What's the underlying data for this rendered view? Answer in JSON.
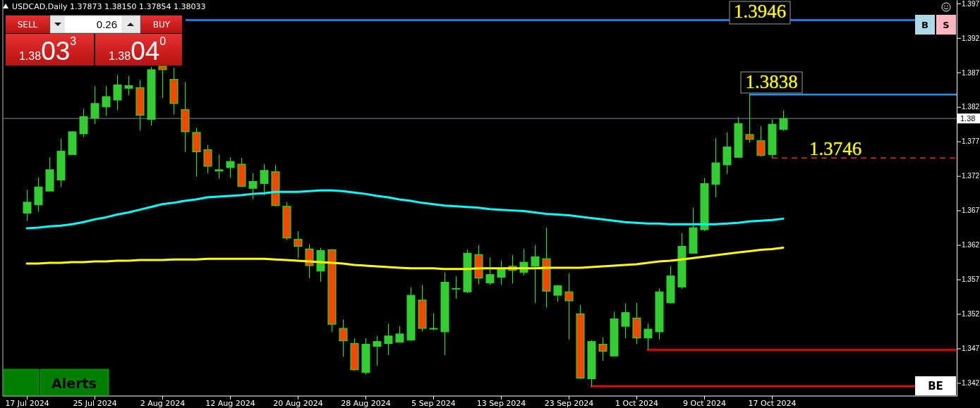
{
  "chart_data": {
    "type": "candlestick",
    "title": "USDCAD,Daily 1.37873 1.38150 1.37854 1.38033",
    "categories": [
      "17 Jul 2024",
      null,
      null,
      null,
      null,
      null,
      "25 Jul 2024",
      null,
      null,
      null,
      null,
      null,
      "2 Aug 2024",
      null,
      null,
      null,
      null,
      null,
      "12 Aug 2024",
      null,
      null,
      null,
      null,
      null,
      "20 Aug 2024",
      null,
      null,
      null,
      null,
      null,
      "28 Aug 2024",
      null,
      null,
      null,
      null,
      null,
      "5 Sep 2024",
      null,
      null,
      null,
      null,
      null,
      "13 Sep 2024",
      null,
      null,
      null,
      null,
      null,
      "23 Sep 2024",
      null,
      null,
      null,
      null,
      null,
      "1 Oct 2024",
      null,
      null,
      null,
      null,
      null,
      "9 Oct 2024",
      null,
      null,
      null,
      null,
      null,
      "17 Oct 2024",
      null,
      null,
      null,
      null,
      null,
      null,
      null,
      null,
      null,
      null,
      null,
      null,
      null,
      null,
      null,
      null
    ],
    "ohlc": [
      [
        1.3666,
        1.37,
        1.3655,
        1.3682
      ],
      [
        1.3678,
        1.3718,
        1.3668,
        1.3704
      ],
      [
        1.3698,
        1.3747,
        1.3697,
        1.3729
      ],
      [
        1.3714,
        1.3774,
        1.3704,
        1.3756
      ],
      [
        1.3751,
        1.3785,
        1.3751,
        1.3784
      ],
      [
        1.3781,
        1.3817,
        1.3776,
        1.3806
      ],
      [
        1.3804,
        1.385,
        1.3795,
        1.3825
      ],
      [
        1.382,
        1.385,
        1.3807,
        1.3835
      ],
      [
        1.383,
        1.3866,
        1.3815,
        1.3852
      ],
      [
        1.3847,
        1.3865,
        1.3837,
        1.3851
      ],
      [
        1.3848,
        1.3859,
        1.3786,
        1.3808
      ],
      [
        1.3802,
        1.3878,
        1.3793,
        1.3874
      ],
      [
        1.3879,
        1.3879,
        1.3833,
        1.3874
      ],
      [
        1.386,
        1.3877,
        1.3809,
        1.3825
      ],
      [
        1.3816,
        1.3856,
        1.3755,
        1.3784
      ],
      [
        1.3783,
        1.379,
        1.3719,
        1.3755
      ],
      [
        1.3758,
        1.3765,
        1.3724,
        1.3734
      ],
      [
        1.3727,
        1.3751,
        1.3716,
        1.3729
      ],
      [
        1.3732,
        1.3747,
        1.3717,
        1.3741
      ],
      [
        1.3737,
        1.3746,
        1.3704,
        1.3705
      ],
      [
        1.3702,
        1.3724,
        1.3686,
        1.3712
      ],
      [
        1.3709,
        1.3737,
        1.3692,
        1.3728
      ],
      [
        1.3726,
        1.3736,
        1.3676,
        1.3677
      ],
      [
        1.3676,
        1.3682,
        1.3627,
        1.363
      ],
      [
        1.3628,
        1.364,
        1.3601,
        1.3618
      ],
      [
        1.3614,
        1.3621,
        1.3572,
        1.359
      ],
      [
        1.3582,
        1.3616,
        1.3567,
        1.3612
      ],
      [
        1.3613,
        1.3614,
        1.3494,
        1.3505
      ],
      [
        1.3499,
        1.3512,
        1.3458,
        1.3481
      ],
      [
        1.3477,
        1.3485,
        1.3438,
        1.3439
      ],
      [
        1.3435,
        1.3485,
        1.3432,
        1.3476
      ],
      [
        1.3473,
        1.3488,
        1.3445,
        1.348
      ],
      [
        1.3477,
        1.3506,
        1.346,
        1.3488
      ],
      [
        1.3479,
        1.3502,
        1.3479,
        1.3491
      ],
      [
        1.3482,
        1.3559,
        1.3481,
        1.3547
      ],
      [
        1.354,
        1.3562,
        1.3495,
        1.3499
      ],
      [
        1.3498,
        1.3521,
        1.3496,
        1.3499
      ],
      [
        1.3494,
        1.358,
        1.346,
        1.3566
      ],
      [
        1.3556,
        1.3574,
        1.3542,
        1.3557
      ],
      [
        1.3552,
        1.3613,
        1.355,
        1.3608
      ],
      [
        1.3606,
        1.362,
        1.3563,
        1.3572
      ],
      [
        1.3565,
        1.3602,
        1.3562,
        1.3577
      ],
      [
        1.3573,
        1.3597,
        1.3562,
        1.3586
      ],
      [
        1.3589,
        1.3605,
        1.3564,
        1.3583
      ],
      [
        1.358,
        1.3614,
        1.3576,
        1.3595
      ],
      [
        1.3589,
        1.362,
        1.3536,
        1.3603
      ],
      [
        1.36,
        1.3645,
        1.3529,
        1.3553
      ],
      [
        1.3547,
        1.3562,
        1.3538,
        1.3561
      ],
      [
        1.3552,
        1.3579,
        1.3483,
        1.3539
      ],
      [
        1.352,
        1.3533,
        1.3426,
        1.3427
      ],
      [
        1.3426,
        1.3482,
        1.3415,
        1.348
      ],
      [
        1.3476,
        1.3486,
        1.3452,
        1.3466
      ],
      [
        1.3459,
        1.3523,
        1.3458,
        1.3513
      ],
      [
        1.3502,
        1.3535,
        1.3485,
        1.3522
      ],
      [
        1.3514,
        1.3536,
        1.3476,
        1.3485
      ],
      [
        1.3485,
        1.3506,
        1.3468,
        1.3498
      ],
      [
        1.3494,
        1.3557,
        1.3483,
        1.3552
      ],
      [
        1.3536,
        1.3589,
        1.3535,
        1.3575
      ],
      [
        1.3559,
        1.3637,
        1.3556,
        1.3618
      ],
      [
        1.3608,
        1.3674,
        1.3607,
        1.3645
      ],
      [
        1.3642,
        1.3717,
        1.364,
        1.3709
      ],
      [
        1.3708,
        1.3775,
        1.3689,
        1.3739
      ],
      [
        1.3736,
        1.3783,
        1.3723,
        1.3762
      ],
      [
        1.3747,
        1.3805,
        1.3746,
        1.3796
      ],
      [
        1.378,
        1.3838,
        1.3768,
        1.3773
      ],
      [
        1.3771,
        1.3792,
        1.3748,
        1.375
      ],
      [
        1.3751,
        1.3802,
        1.3746,
        1.3795
      ],
      [
        1.37873,
        1.3815,
        1.37854,
        1.38033
      ],
      null,
      null,
      null,
      null,
      null,
      null,
      null,
      null,
      null,
      null,
      null,
      null,
      null,
      null,
      null
    ],
    "colors": [
      "#32cd32",
      "#32cd32",
      "#32cd32",
      "#32cd32",
      "#32cd32",
      "#32cd32",
      "#32cd32",
      "#32cd32",
      "#32cd32",
      "#32cd32",
      "#ff4500",
      "#32cd32",
      "#ff4500",
      "#ff4500",
      "#ff4500",
      "#ff4500",
      "#ff4500",
      "#32cd32",
      "#32cd32",
      "#ff4500",
      "#32cd32",
      "#32cd32",
      "#ff4500",
      "#ff4500",
      "#ff4500",
      "#ff4500",
      "#32cd32",
      "#ff4500",
      "#ff4500",
      "#ff4500",
      "#32cd32",
      "#32cd32",
      "#32cd32",
      "#32cd32",
      "#32cd32",
      "#ff4500",
      "#32cd32",
      "#32cd32",
      "#32cd32",
      "#32cd32",
      "#ff4500",
      "#32cd32",
      "#32cd32",
      "#ff4500",
      "#32cd32",
      "#32cd32",
      "#ff4500",
      "#32cd32",
      "#ff4500",
      "#ff4500",
      "#32cd32",
      "#ff4500",
      "#32cd32",
      "#32cd32",
      "#ff4500",
      "#32cd32",
      "#32cd32",
      "#32cd32",
      "#32cd32",
      "#32cd32",
      "#32cd32",
      "#32cd32",
      "#32cd32",
      "#32cd32",
      "#ff4500",
      "#ff4500",
      "#32cd32",
      "#32cd32",
      null,
      null,
      null,
      null,
      null,
      null,
      null,
      null,
      null,
      null,
      null,
      null,
      null,
      null,
      null
    ],
    "series": [
      {
        "type": "line",
        "color": "#00ffff",
        "values": [
          1.3644,
          1.3645,
          1.3647,
          1.3648,
          1.365,
          1.3653,
          1.3657,
          1.366,
          1.3664,
          1.3667,
          1.3671,
          1.3675,
          1.3679,
          1.3681,
          1.3684,
          1.3686,
          1.3689,
          1.369,
          1.3691,
          1.3692,
          1.3694,
          1.3695,
          1.3697,
          1.3697,
          1.3697,
          1.3698,
          1.3699,
          1.3699,
          1.3698,
          1.3696,
          1.3694,
          1.3691,
          1.3689,
          1.3686,
          1.3684,
          1.3681,
          1.3679,
          1.3677,
          1.3676,
          1.3675,
          1.3674,
          1.3672,
          1.3671,
          1.367,
          1.3669,
          1.3667,
          1.3665,
          1.3664,
          1.3663,
          1.3661,
          1.3659,
          1.3657,
          1.3655,
          1.3653,
          1.3652,
          1.3651,
          1.3651,
          1.365,
          1.365,
          1.365,
          1.365,
          1.365,
          1.3651,
          1.3652,
          1.3654,
          1.3655,
          1.3656,
          1.3658,
          null,
          null,
          null,
          null,
          null,
          null,
          null,
          null,
          null,
          null,
          null,
          null,
          null,
          null,
          null
        ]
      },
      {
        "type": "line",
        "color": "#ffff00",
        "values": [
          1.3593,
          1.3593,
          1.3594,
          1.3594,
          1.3595,
          1.3595,
          1.3596,
          1.3596,
          1.3597,
          1.3597,
          1.3598,
          1.3598,
          1.3598,
          1.3599,
          1.3599,
          1.3599,
          1.36,
          1.36,
          1.36,
          1.36,
          1.36,
          1.36,
          1.3599,
          1.3598,
          1.3597,
          1.3596,
          1.3595,
          1.3594,
          1.3593,
          1.3591,
          1.359,
          1.3589,
          1.3588,
          1.3587,
          1.3586,
          1.3586,
          1.3586,
          1.3585,
          1.3585,
          1.3585,
          1.3586,
          1.3586,
          1.3586,
          1.3586,
          1.3586,
          1.3586,
          1.3587,
          1.3587,
          1.3587,
          1.3587,
          1.3588,
          1.3589,
          1.359,
          1.3591,
          1.3592,
          1.3594,
          1.3596,
          1.3597,
          1.3599,
          1.3601,
          1.3603,
          1.3605,
          1.3607,
          1.3609,
          1.3611,
          1.3613,
          1.3614,
          1.3616,
          null,
          null,
          null,
          null,
          null,
          null,
          null,
          null,
          null,
          null,
          null,
          null,
          null,
          null,
          null
        ]
      }
    ],
    "ylim": [
      1.3401,
      1.3975
    ],
    "yticks": [
      1.342,
      1.347,
      1.352,
      1.357,
      1.362,
      1.367,
      1.372,
      1.377,
      1.382,
      1.387,
      1.392,
      1.397
    ],
    "ref_lines": [
      {
        "axis": "y",
        "value": 1.3946,
        "label": "1.3946",
        "color": "#1e90ff"
      },
      {
        "axis": "y",
        "value": 1.3838,
        "label": "1.3838",
        "color": "#1e90ff"
      },
      {
        "axis": "y",
        "value": 1.3746,
        "label": "1.3746",
        "color": "#ff4500",
        "line_style": "dashed"
      },
      {
        "axis": "y",
        "value": 1.3468,
        "color": "#ff0000"
      },
      {
        "axis": "y",
        "value": 1.3415,
        "label": "BE",
        "color": "#ff0000"
      },
      {
        "axis": "y",
        "value": 1.38033,
        "label": "1.38",
        "color": "#778899"
      }
    ],
    "annotations": [
      "SELL",
      "0.26",
      "BUY",
      "1.3803$^{3}$",
      "1.3804$^{0}$",
      "Alerts",
      "B",
      "S"
    ]
  }
}
